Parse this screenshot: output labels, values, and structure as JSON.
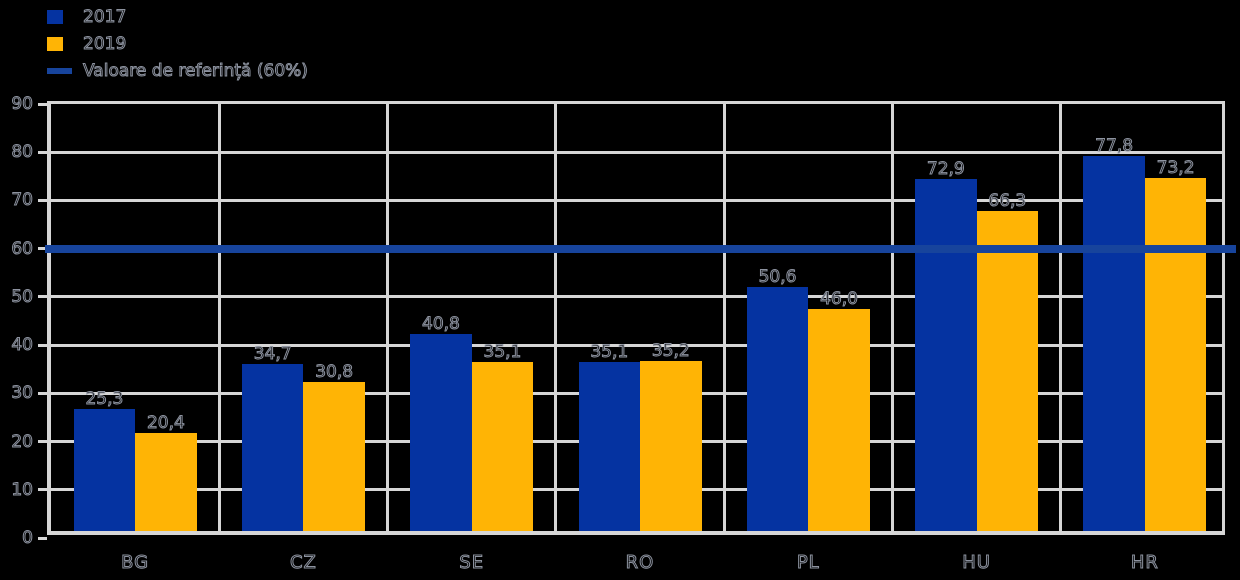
{
  "colors": {
    "series_2017": "#0533a1",
    "series_2019": "#ffb405",
    "reference_line": "#17449c",
    "gridline": "#d6d6d6",
    "background": "#000000",
    "text_outline": "#8d93a0"
  },
  "legend": {
    "items": [
      {
        "label": "2017",
        "swatch": "square",
        "color": "#0533a1"
      },
      {
        "label": "2019",
        "swatch": "square",
        "color": "#ffb405"
      },
      {
        "label": "Valoare de referință (60%)",
        "swatch": "line",
        "color": "#17449c"
      }
    ]
  },
  "chart_data": {
    "type": "bar",
    "title": "",
    "xlabel": "",
    "ylabel": "",
    "categories": [
      "BG",
      "CZ",
      "SE",
      "RO",
      "PL",
      "HU",
      "HR"
    ],
    "series": [
      {
        "name": "2017",
        "color": "#0533a1",
        "values": [
          25.3,
          34.7,
          40.8,
          35.1,
          50.6,
          72.9,
          77.8
        ],
        "labels": [
          "25,3",
          "34,7",
          "40,8",
          "35,1",
          "50,6",
          "72,9",
          "77,8"
        ]
      },
      {
        "name": "2019",
        "color": "#ffb405",
        "values": [
          20.4,
          30.8,
          35.1,
          35.2,
          46.0,
          66.3,
          73.2
        ],
        "labels": [
          "20,4",
          "30,8",
          "35,1",
          "35,2",
          "46,0",
          "66,3",
          "73,2"
        ]
      }
    ],
    "reference_line": {
      "value": 60,
      "label": "Valoare de referință (60%)",
      "color": "#17449c"
    },
    "ylim": [
      0,
      90
    ],
    "yticks": [
      0,
      10,
      20,
      30,
      40,
      50,
      60,
      70,
      80,
      90
    ],
    "grid": true,
    "legend_position": "top-left"
  }
}
